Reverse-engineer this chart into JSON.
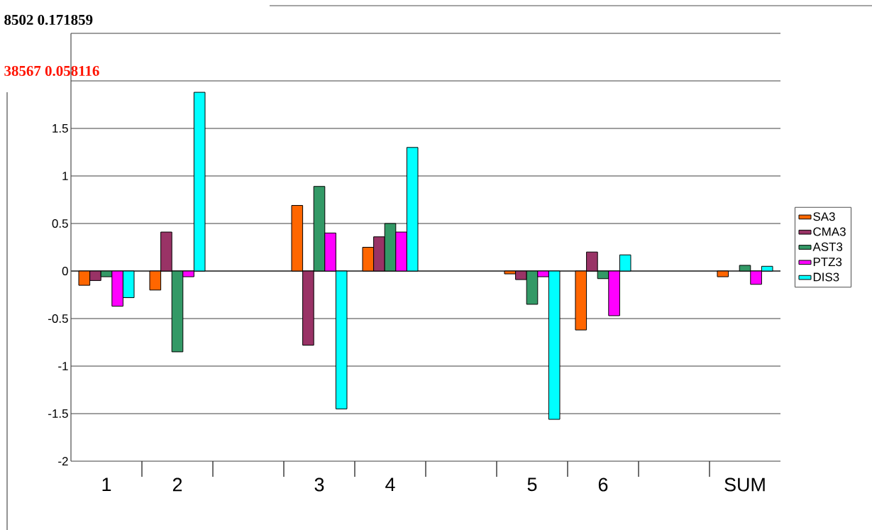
{
  "chart_data": {
    "type": "bar",
    "categories": [
      "1",
      "2",
      null,
      "3",
      "4",
      null,
      "5",
      "6",
      null,
      "SUM"
    ],
    "series": [
      {
        "name": "SA3",
        "color": "#ff6600",
        "values": [
          -0.15,
          -0.2,
          null,
          0.69,
          0.25,
          null,
          -0.03,
          -0.62,
          null,
          -0.06
        ]
      },
      {
        "name": "CMA3",
        "color": "#993366",
        "values": [
          -0.1,
          0.41,
          null,
          -0.78,
          0.36,
          null,
          -0.09,
          0.2,
          null,
          null
        ]
      },
      {
        "name": "AST3",
        "color": "#339966",
        "values": [
          -0.06,
          -0.85,
          null,
          0.89,
          0.5,
          null,
          -0.35,
          -0.08,
          null,
          0.06
        ]
      },
      {
        "name": "PTZ3",
        "color": "#ff00ff",
        "values": [
          -0.37,
          -0.06,
          null,
          0.4,
          0.41,
          null,
          -0.06,
          -0.47,
          null,
          -0.14
        ]
      },
      {
        "name": "DIS3",
        "color": "#00ffff",
        "values": [
          -0.28,
          1.88,
          null,
          -1.45,
          1.3,
          null,
          -1.56,
          0.17,
          null,
          0.05
        ]
      }
    ],
    "ylim": [
      -2,
      2.5
    ],
    "yticks": [
      -2,
      -1.5,
      -1,
      -0.5,
      0,
      0.5,
      1,
      1.5,
      {
        "value": 2,
        "label": null
      },
      {
        "value": 2.5,
        "label": null
      }
    ],
    "grid": "y",
    "legend": "right",
    "annotations": [
      "8502 0.171859",
      "38567 0.058116"
    ]
  }
}
